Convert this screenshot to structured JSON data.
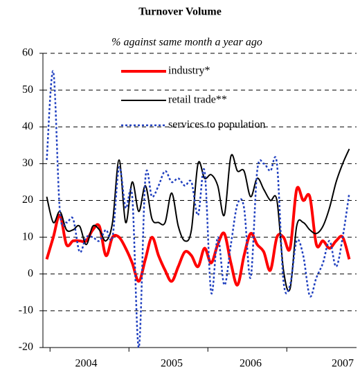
{
  "chart_data": {
    "type": "line",
    "title": "Turnover Volume",
    "subtitle": "% against same month a year ago",
    "categories": [
      null,
      null,
      null,
      null,
      null,
      null,
      "2004",
      null,
      null,
      null,
      null,
      null,
      null,
      null,
      null,
      null,
      null,
      null,
      null,
      "2005",
      null,
      null,
      null,
      null,
      null,
      null,
      null,
      null,
      null,
      null,
      null,
      "2006",
      null,
      null,
      null,
      null,
      null,
      null,
      null,
      null,
      null,
      null,
      null,
      null,
      null,
      "2007",
      null
    ],
    "series": [
      {
        "name": "industry*",
        "color": "#ff0000",
        "width": 4,
        "dash": "none",
        "values": [
          4,
          10,
          16,
          8,
          9,
          9,
          9,
          12,
          13,
          5,
          10,
          10,
          7,
          3,
          -2,
          4,
          10,
          5,
          1,
          -2,
          2,
          6,
          5,
          2,
          7,
          3,
          8,
          11,
          3,
          -3,
          5,
          11,
          8,
          6,
          1,
          10,
          10,
          7,
          23,
          20,
          21,
          8,
          9,
          7,
          9,
          10,
          4
        ]
      },
      {
        "name": "retail trade**",
        "color": "#000000",
        "width": 2,
        "dash": "none",
        "values": [
          21,
          14,
          17,
          12,
          12,
          13,
          8,
          13,
          12,
          9,
          14,
          31,
          14,
          25,
          17,
          24,
          15,
          14,
          14,
          22,
          13,
          9,
          12,
          30,
          26,
          27,
          24,
          16,
          32,
          28,
          28,
          21,
          26,
          23,
          20,
          20,
          1,
          -4,
          13,
          14,
          12,
          11,
          13,
          18,
          25,
          30,
          34
        ]
      },
      {
        "name": "services to population",
        "color": "#1f3fbf",
        "width": 2.5,
        "dash": "3 3",
        "values": [
          31,
          55,
          17,
          14,
          15,
          6,
          10,
          10,
          9,
          12,
          10,
          29,
          18,
          21,
          -20,
          26,
          21,
          24,
          28,
          25,
          26,
          24,
          25,
          16,
          28,
          -5,
          10,
          -3,
          8,
          19,
          18,
          -1,
          28,
          30,
          28,
          30,
          -2,
          -3,
          9,
          5,
          -6,
          -1,
          3,
          9,
          2,
          10,
          22
        ]
      }
    ],
    "ylim": [
      -20,
      60
    ],
    "yticks": [
      -20,
      -10,
      0,
      10,
      20,
      30,
      40,
      50,
      60
    ],
    "grid": true
  }
}
